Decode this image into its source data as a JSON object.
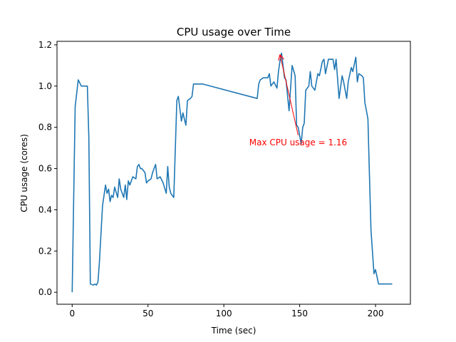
{
  "chart_data": {
    "type": "line",
    "title": "CPU usage over Time",
    "xlabel": "Time (sec)",
    "ylabel": "CPU usage (cores)",
    "xlim": [
      -10,
      223
    ],
    "ylim": [
      -0.058,
      1.217
    ],
    "xticks": [
      0,
      50,
      100,
      150,
      200
    ],
    "yticks": [
      0.0,
      0.2,
      0.4,
      0.6,
      0.8,
      1.0,
      1.2
    ],
    "xtick_labels": [
      "0",
      "50",
      "100",
      "150",
      "200"
    ],
    "ytick_labels": [
      "0.0",
      "0.2",
      "0.4",
      "0.6",
      "0.8",
      "1.0",
      "1.2"
    ],
    "line_color": "#1f77b4",
    "series": [
      {
        "name": "CPU usage",
        "x": [
          0,
          2,
          4,
          6,
          8,
          10,
          11,
          12,
          14,
          15,
          16,
          17,
          18,
          20,
          22,
          23,
          24,
          25,
          26,
          27,
          28,
          30,
          31,
          32,
          34,
          35,
          36,
          37,
          38,
          40,
          42,
          43,
          44,
          45,
          46,
          48,
          49,
          50,
          52,
          53,
          54,
          55,
          56,
          58,
          60,
          62,
          63,
          64,
          65,
          67,
          69,
          70,
          72,
          73,
          75,
          76,
          78,
          79,
          80,
          81,
          82,
          84,
          86,
          122,
          123,
          124,
          126,
          128,
          129,
          130,
          131,
          133,
          135,
          136,
          137,
          138,
          140,
          141,
          143,
          145,
          147,
          148,
          149,
          151,
          152,
          153,
          154,
          156,
          157,
          158,
          159,
          160,
          162,
          163,
          165,
          166,
          167,
          169,
          170,
          172,
          173,
          174,
          176,
          178,
          179,
          181,
          182,
          184,
          185,
          187,
          188,
          189,
          191,
          192,
          193,
          194,
          195,
          196,
          197,
          199,
          200,
          202,
          203,
          204,
          205,
          206,
          207,
          209,
          211
        ],
        "values": [
          0.0,
          0.9,
          1.03,
          1.0,
          1.0,
          1.0,
          0.75,
          0.04,
          0.035,
          0.04,
          0.035,
          0.05,
          0.15,
          0.42,
          0.52,
          0.48,
          0.5,
          0.44,
          0.47,
          0.46,
          0.51,
          0.46,
          0.55,
          0.5,
          0.46,
          0.52,
          0.45,
          0.54,
          0.52,
          0.56,
          0.55,
          0.61,
          0.62,
          0.6,
          0.6,
          0.58,
          0.53,
          0.54,
          0.55,
          0.58,
          0.6,
          0.62,
          0.55,
          0.56,
          0.53,
          0.48,
          0.61,
          0.51,
          0.48,
          0.46,
          0.93,
          0.95,
          0.83,
          0.87,
          0.81,
          0.93,
          0.94,
          0.95,
          1.01,
          1.01,
          1.01,
          1.01,
          1.01,
          0.94,
          1.01,
          1.03,
          1.04,
          1.04,
          1.04,
          1.06,
          1.0,
          1.02,
          0.99,
          1.07,
          1.12,
          1.16,
          1.04,
          1.03,
          0.88,
          1.1,
          1.05,
          0.81,
          0.8,
          0.72,
          0.8,
          0.82,
          0.98,
          1.0,
          1.07,
          1.0,
          0.99,
          0.98,
          1.06,
          1.05,
          1.12,
          1.13,
          1.06,
          1.13,
          1.13,
          1.13,
          1.08,
          1.13,
          0.94,
          1.05,
          1.02,
          0.94,
          1.02,
          1.09,
          1.07,
          1.14,
          1.02,
          1.06,
          1.05,
          1.04,
          0.92,
          0.88,
          0.84,
          0.57,
          0.3,
          0.09,
          0.11,
          0.04,
          0.04,
          0.04,
          0.04,
          0.04,
          0.04,
          0.04,
          0.04
        ]
      }
    ],
    "annotations": [
      {
        "text": "Max CPU usage = 1.16",
        "point": [
          137,
          1.16
        ],
        "text_anchor_xy": [
          149,
          0.72
        ],
        "color": "#ff0000"
      }
    ]
  }
}
